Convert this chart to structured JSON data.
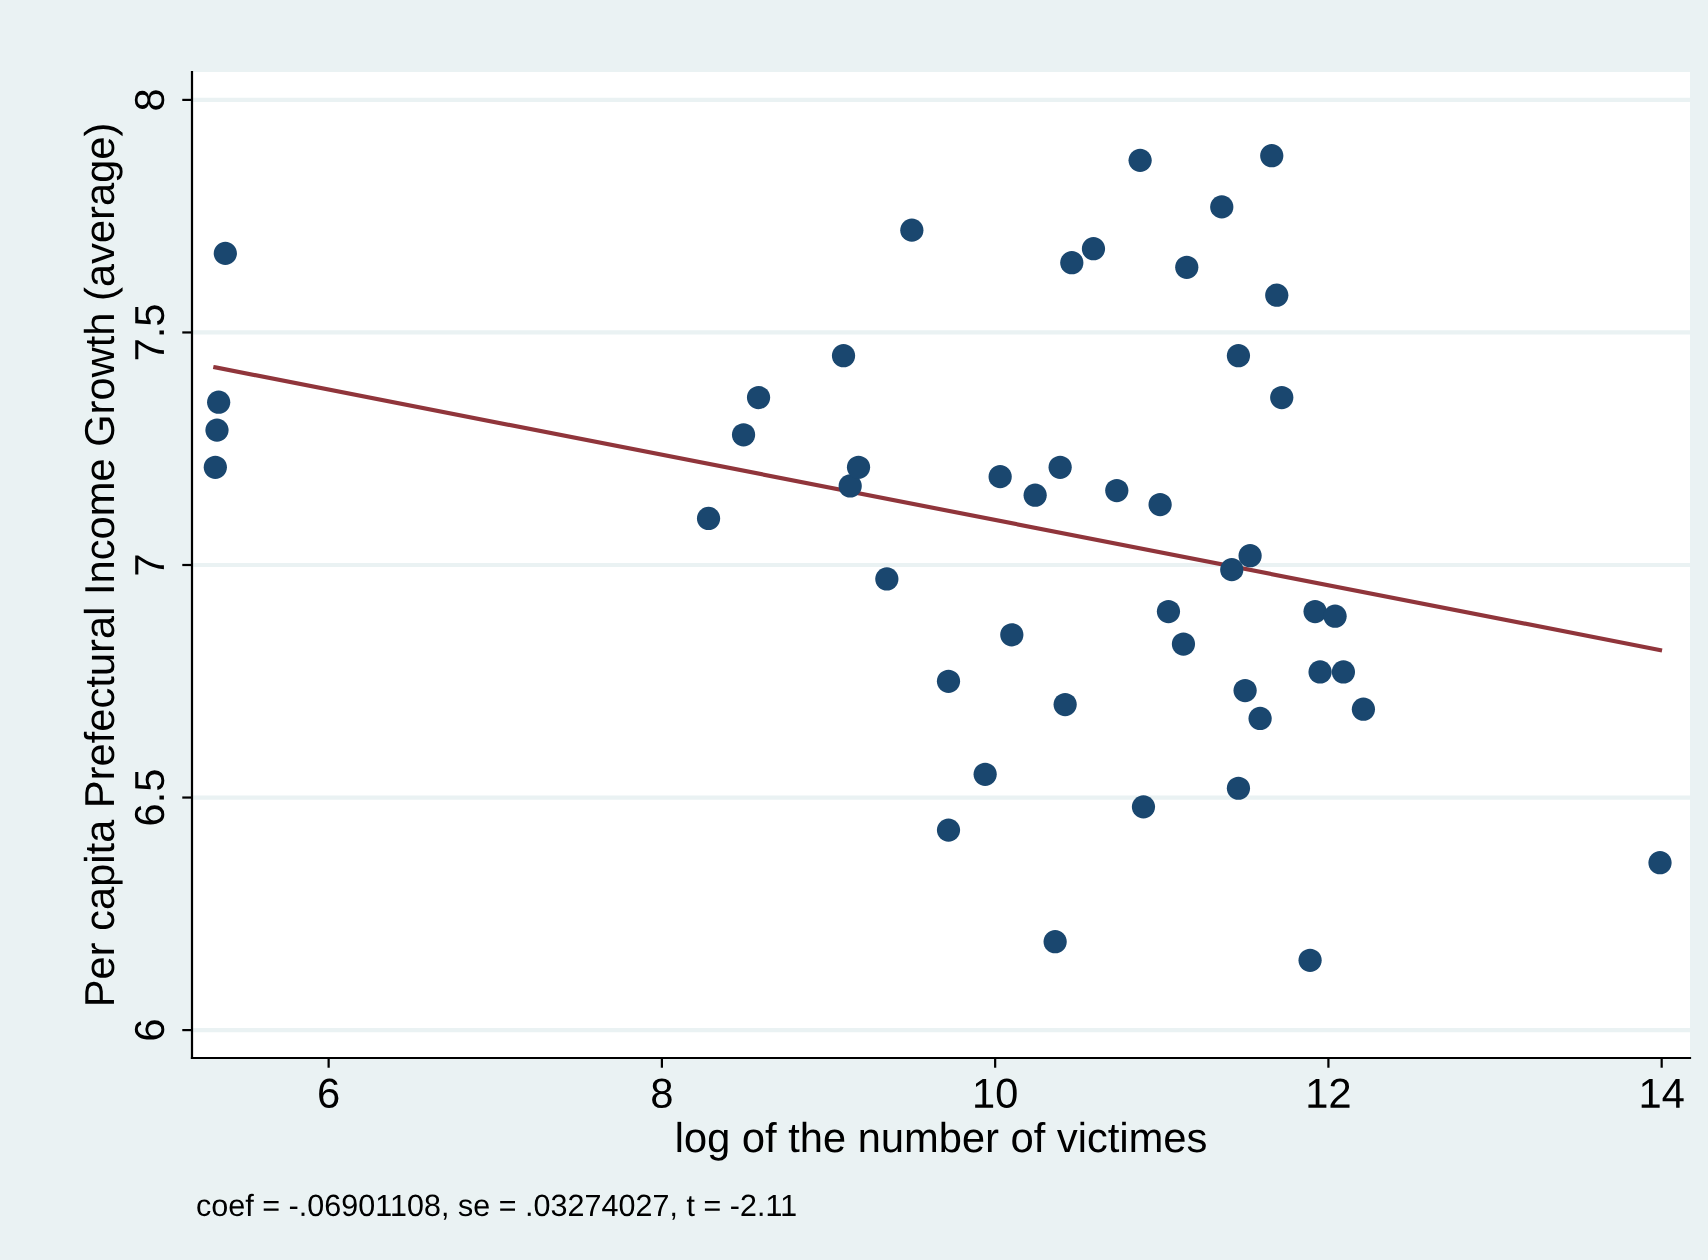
{
  "chart_data": {
    "type": "scatter",
    "xlabel": "log of the number of victimes",
    "ylabel": "Per capita Prefectural Income Growth (average)",
    "annotations": [
      "coef = -.06901108, se = .03274027, t = -2.11"
    ],
    "xlim": [
      5.18,
      14.17
    ],
    "ylim": [
      5.94,
      8.06
    ],
    "xticks": [
      6,
      8,
      10,
      12,
      14
    ],
    "yticks": [
      6,
      6.5,
      7,
      7.5,
      8
    ],
    "grid": "y",
    "series": [
      {
        "marker": "circle",
        "color": "#1a476f",
        "x": [
          5.38,
          5.34,
          5.33,
          5.32,
          8.28,
          8.49,
          8.58,
          9.09,
          9.13,
          9.18,
          9.35,
          9.5,
          10.87,
          11.66,
          11.36,
          10.46,
          10.59,
          11.15,
          11.69,
          11.46,
          11.72,
          10.03,
          10.24,
          10.39,
          10.73,
          10.99,
          11.53,
          11.42,
          11.04,
          11.92,
          12.04,
          10.1,
          11.13,
          9.72,
          11.95,
          12.09,
          11.5,
          10.42,
          12.21,
          11.59,
          9.94,
          11.46,
          10.89,
          9.72,
          13.99,
          10.36,
          11.89
        ],
        "values": [
          7.67,
          7.35,
          7.29,
          7.21,
          7.1,
          7.28,
          7.36,
          7.45,
          7.17,
          7.21,
          6.97,
          7.72,
          7.87,
          7.88,
          7.77,
          7.65,
          7.68,
          7.64,
          7.58,
          7.45,
          7.36,
          7.19,
          7.15,
          7.21,
          7.16,
          7.13,
          7.02,
          6.99,
          6.9,
          6.9,
          6.89,
          6.85,
          6.83,
          6.75,
          6.77,
          6.77,
          6.73,
          6.7,
          6.69,
          6.67,
          6.55,
          6.52,
          6.48,
          6.43,
          6.36,
          6.19,
          6.15
        ]
      },
      {
        "type": "line",
        "marker": "none",
        "color": "#90353b",
        "x": [
          5.32,
          13.99
        ],
        "values": [
          7.425,
          6.817
        ]
      }
    ]
  }
}
